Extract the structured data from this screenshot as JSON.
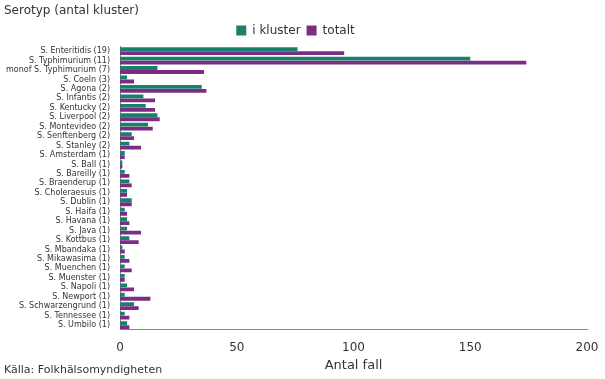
{
  "chart_data": {
    "type": "bar",
    "orientation": "horizontal",
    "title": "Serotyp (antal kluster)",
    "source": "Källa: Folkhälsomyndigheten",
    "x_label": "Antal fall",
    "categories": [
      "S. Enteritidis (19)",
      "S. Typhimurium (11)",
      "monof S. Typhimurium (7)",
      "S. Coeln (3)",
      "S. Agona (2)",
      "S. Infantis (2)",
      "S. Kentucky (2)",
      "S. Liverpool (2)",
      "S. Montevideo (2)",
      "S. Senftenberg (2)",
      "S. Stanley (2)",
      "S. Amsterdam (1)",
      "S. Ball (1)",
      "S. Bareilly (1)",
      "S. Braenderup (1)",
      "S. Choleraesuis (1)",
      "S. Dublin (1)",
      "S. Haifa (1)",
      "S. Havana (1)",
      "S. Java (1)",
      "S. Kottbus (1)",
      "S. Mbandaka (1)",
      "S. Mikawasima (1)",
      "S. Muenchen (1)",
      "S. Muenster (1)",
      "S. Napoli (1)",
      "S. Newport (1)",
      "S. Schwarzengrund (1)",
      "S. Tennessee (1)",
      "S. Umbilo (1)"
    ],
    "series": [
      {
        "name": "i kluster",
        "color": "#1b7f6c",
        "values": [
          76,
          150,
          16,
          3,
          35,
          10,
          11,
          16,
          12,
          5,
          4,
          2,
          1,
          2,
          4,
          3,
          5,
          2,
          3,
          3,
          4,
          1,
          2,
          2,
          2,
          3,
          2,
          6,
          2,
          3
        ]
      },
      {
        "name": "totalt",
        "color": "#7b2c83",
        "values": [
          96,
          174,
          36,
          6,
          37,
          15,
          15,
          17,
          14,
          6,
          9,
          2,
          1,
          4,
          5,
          3,
          5,
          3,
          4,
          9,
          8,
          2,
          4,
          5,
          2,
          6,
          13,
          8,
          4,
          4
        ]
      }
    ],
    "xlim": [
      0,
      200
    ],
    "xticks": [
      0,
      50,
      100,
      150,
      200
    ],
    "grid": false,
    "legend": "top"
  }
}
